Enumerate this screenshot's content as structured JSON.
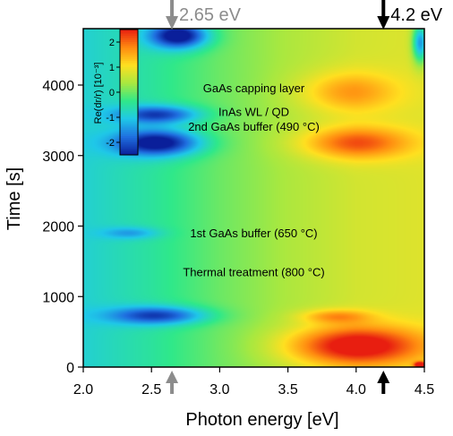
{
  "chart_data": {
    "type": "heatmap",
    "title": "",
    "xlabel": "Photon energy [eV]",
    "ylabel": "Time [s]",
    "xlim": [
      2.0,
      4.5
    ],
    "ylim": [
      0,
      4800
    ],
    "x_ticks": [
      2.0,
      2.5,
      3.0,
      3.5,
      4.0,
      4.5
    ],
    "x_tick_labels": [
      "2.0",
      "2.5",
      "3.0",
      "3.5",
      "4.0",
      "4.5"
    ],
    "y_ticks": [
      0,
      1000,
      2000,
      3000,
      4000
    ],
    "y_tick_labels": [
      "0",
      "1000",
      "2000",
      "3000",
      "4000"
    ],
    "colorbar": {
      "label": "Re(dr/r) [10⁻³]",
      "range": [
        -2.5,
        2.5
      ],
      "ticks": [
        -2,
        -1,
        0,
        1,
        2
      ],
      "tick_labels": [
        "-2",
        "-1",
        "0",
        "1",
        "2"
      ],
      "colormap": [
        "#0a1f9a",
        "#1f6fe0",
        "#1fc8e8",
        "#2fe88a",
        "#a8e840",
        "#ffe020",
        "#ff8a10",
        "#e81e10"
      ]
    },
    "field": {
      "baseline_by_energy": [
        {
          "x": 2.0,
          "v": -0.9
        },
        {
          "x": 2.5,
          "v": -0.5
        },
        {
          "x": 3.0,
          "v": 0.0
        },
        {
          "x": 3.5,
          "v": 0.4
        },
        {
          "x": 4.0,
          "v": 0.7
        },
        {
          "x": 4.5,
          "v": 0.8
        }
      ],
      "features": [
        {
          "x": 2.7,
          "y": 4700,
          "sx": 0.15,
          "sy": 130,
          "amp": -2.6
        },
        {
          "x": 2.55,
          "y": 3180,
          "sx": 0.22,
          "sy": 130,
          "amp": -2.4
        },
        {
          "x": 2.55,
          "y": 3580,
          "sx": 0.22,
          "sy": 90,
          "amp": -1.8
        },
        {
          "x": 4.0,
          "y": 3180,
          "sx": 0.28,
          "sy": 160,
          "amp": 1.5
        },
        {
          "x": 3.95,
          "y": 3900,
          "sx": 0.25,
          "sy": 200,
          "amp": 1.0
        },
        {
          "x": 2.55,
          "y": 730,
          "sx": 0.25,
          "sy": 90,
          "amp": -1.8
        },
        {
          "x": 3.85,
          "y": 720,
          "sx": 0.18,
          "sy": 70,
          "amp": 1.0
        },
        {
          "x": 4.0,
          "y": 300,
          "sx": 0.35,
          "sy": 200,
          "amp": 2.2
        },
        {
          "x": 2.35,
          "y": 1900,
          "sx": 0.15,
          "sy": 60,
          "amp": -0.8
        },
        {
          "x": 4.47,
          "y": 4600,
          "sx": 0.04,
          "sy": 200,
          "amp": -2.2
        },
        {
          "x": 4.47,
          "y": 30,
          "sx": 0.03,
          "sy": 30,
          "amp": 2.5
        }
      ]
    },
    "annotations": [
      {
        "text": "GaAs capping layer",
        "x": 3.25,
        "y": 3900
      },
      {
        "text": "InAs WL / QD",
        "x": 3.25,
        "y": 3560
      },
      {
        "text": "2nd GaAs buffer (490 °C)",
        "x": 3.25,
        "y": 3350
      },
      {
        "text": "1st GaAs buffer (650 °C)",
        "x": 3.25,
        "y": 1840
      },
      {
        "text": "Thermal treatment (800 °C)",
        "x": 3.25,
        "y": 1290
      }
    ],
    "markers": [
      {
        "label": "2.65 eV",
        "x": 2.65,
        "color": "#8c8c8c"
      },
      {
        "label": "4.2 eV",
        "x": 4.2,
        "color": "#000000"
      }
    ]
  }
}
